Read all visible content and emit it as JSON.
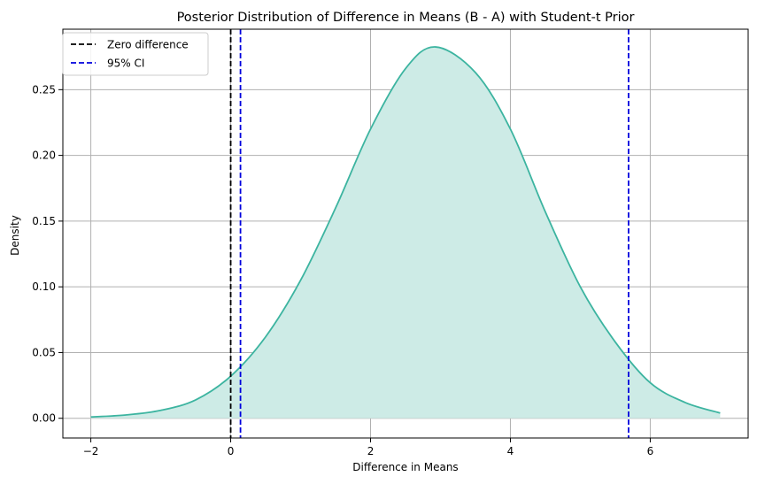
{
  "chart_data": {
    "type": "area",
    "title": "Posterior Distribution of Difference in Means (B - A) with Student-t Prior",
    "xlabel": "Difference in Means",
    "ylabel": "Density",
    "xlim": [
      -2.4,
      7.4
    ],
    "ylim": [
      -0.015,
      0.296
    ],
    "xticks": [
      -2,
      0,
      2,
      4,
      6
    ],
    "xtick_labels": [
      "−2",
      "0",
      "2",
      "4",
      "6"
    ],
    "yticks": [
      0.0,
      0.05,
      0.1,
      0.15,
      0.2,
      0.25
    ],
    "ytick_labels": [
      "0.00",
      "0.05",
      "0.10",
      "0.15",
      "0.20",
      "0.25"
    ],
    "grid": true,
    "legend_position": "top-left",
    "colors": {
      "curve": "#3cb4a0",
      "fill": "#cdebe6",
      "zero_line": "#000000",
      "ci_line": "#0000dd",
      "grid": "#b0b0b0",
      "axis": "#000000"
    },
    "series": [
      {
        "name": "",
        "x": [
          -2.0,
          -1.5,
          -1.0,
          -0.5,
          0.0,
          0.5,
          1.0,
          1.5,
          2.0,
          2.5,
          2.93,
          3.5,
          4.0,
          4.5,
          5.0,
          5.5,
          6.0,
          6.5,
          7.0
        ],
        "y": [
          0.001,
          0.0025,
          0.006,
          0.014,
          0.032,
          0.062,
          0.105,
          0.16,
          0.22,
          0.266,
          0.2825,
          0.263,
          0.22,
          0.157,
          0.1,
          0.058,
          0.027,
          0.012,
          0.004
        ]
      }
    ],
    "vlines": [
      {
        "name": "Zero difference",
        "x": 0.0,
        "style": "dashed",
        "color": "#000000"
      },
      {
        "name": "95% CI",
        "x": 0.14,
        "style": "dashed",
        "color": "#0000dd"
      },
      {
        "name": "95% CI",
        "x": 5.69,
        "style": "dashed",
        "color": "#0000dd"
      }
    ],
    "legend": [
      {
        "label": "Zero difference",
        "color": "#000000",
        "style": "dashed"
      },
      {
        "label": "95% CI",
        "color": "#0000dd",
        "style": "dashed"
      }
    ]
  }
}
